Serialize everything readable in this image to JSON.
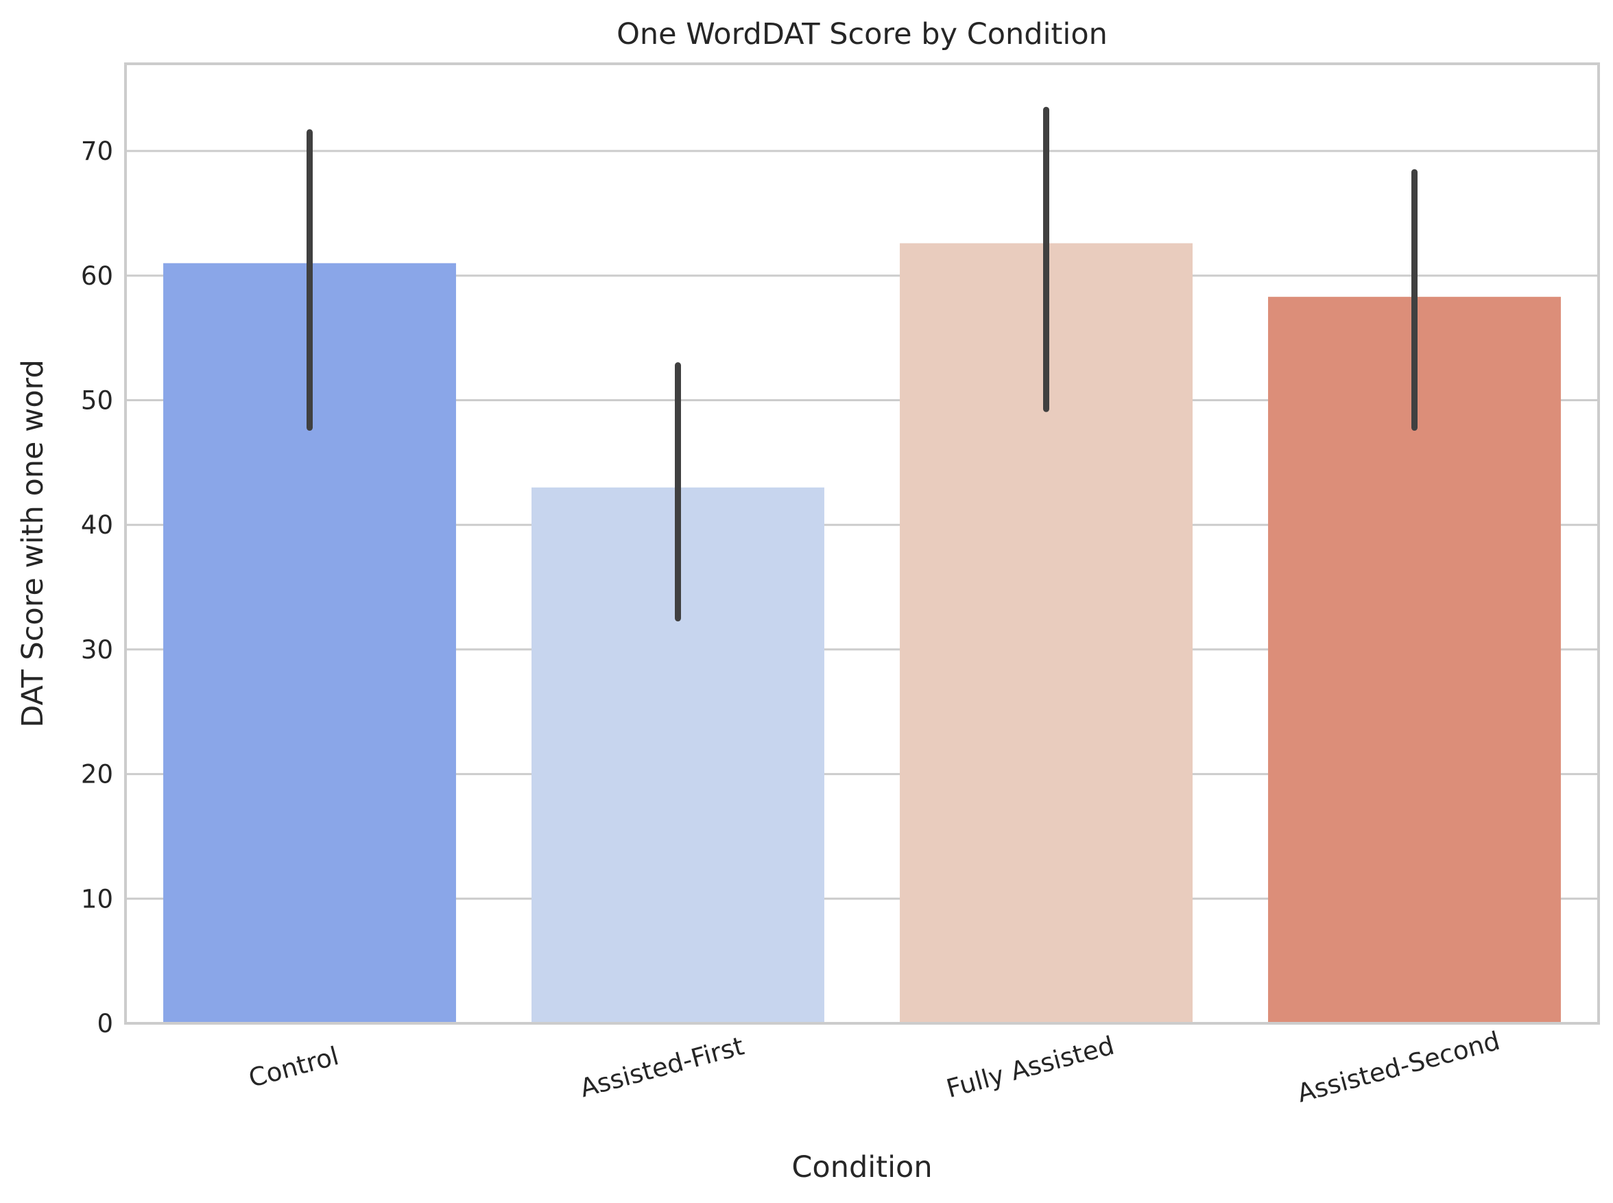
{
  "chart_data": {
    "type": "bar",
    "title": "One WordDAT Score by Condition",
    "xlabel": "Condition",
    "ylabel": "DAT Score with one word",
    "categories": [
      "Control",
      "Assisted-First",
      "Fully Assisted",
      "Assisted-Second"
    ],
    "values": [
      61.0,
      43.0,
      62.6,
      58.3
    ],
    "error_low": [
      47.8,
      32.5,
      49.3,
      47.8
    ],
    "error_high": [
      71.5,
      52.8,
      73.3,
      68.3
    ],
    "colors": [
      "#8aa6e8",
      "#c7d5ee",
      "#e9ccbe",
      "#dc8e79"
    ],
    "ylim": [
      0,
      77
    ],
    "yticks": [
      0,
      10,
      20,
      30,
      40,
      50,
      60,
      70
    ],
    "grid": true,
    "grid_axis": "y"
  }
}
